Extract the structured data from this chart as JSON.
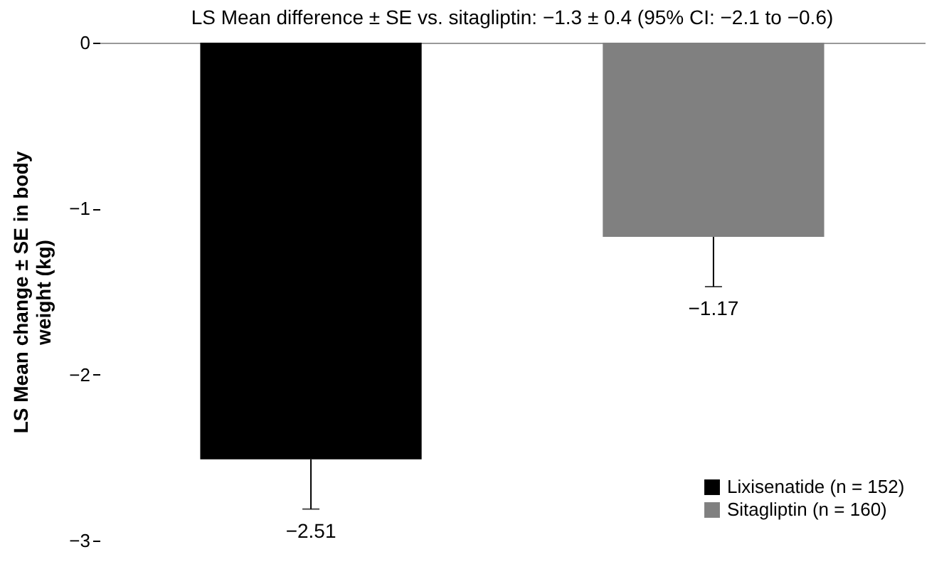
{
  "chart_data": {
    "type": "bar",
    "title": "LS Mean difference ± SE vs. sitagliptin: −1.3 ± 0.4 (95% CI: −2.1 to −0.6)",
    "ylabel": "LS Mean change ± SE in body weight (kg)",
    "categories": [
      null,
      null
    ],
    "series": [
      {
        "name": "Lixisenatide (n = 152)",
        "color": "#000000",
        "values": [
          -2.51,
          null
        ],
        "errors": [
          [
            -2.81,
            -2.51
          ],
          null
        ],
        "value_labels": [
          "−2.51",
          null
        ]
      },
      {
        "name": "Sitagliptin (n = 160)",
        "color": "#808080",
        "values": [
          null,
          -1.17
        ],
        "errors": [
          null,
          [
            -1.47,
            -1.17
          ]
        ],
        "value_labels": [
          null,
          "−1.17"
        ]
      }
    ],
    "ylim": [
      -3,
      0
    ],
    "yticks": [
      {
        "value": 0,
        "label": "0"
      },
      {
        "value": -1,
        "label": "−1"
      },
      {
        "value": -2,
        "label": "−2"
      },
      {
        "value": -3,
        "label": "−3"
      }
    ],
    "grid": false,
    "legend": "bottom right"
  }
}
